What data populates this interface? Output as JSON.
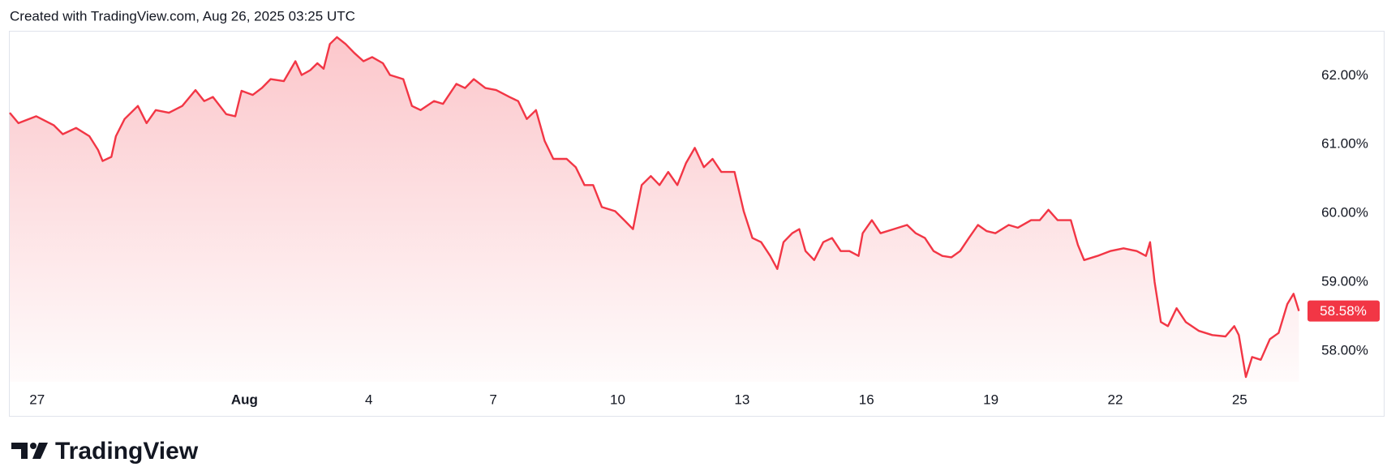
{
  "chart_data": {
    "type": "area",
    "title": "Created with TradingView.com, Aug 26, 2025 03:25 UTC",
    "brand": "TradingView",
    "color": "#f23645",
    "x": [
      -0.66,
      -0.45,
      -0.02,
      0.4,
      0.62,
      0.94,
      1.26,
      1.47,
      1.58,
      1.79,
      1.9,
      2.11,
      2.43,
      2.64,
      2.86,
      3.18,
      3.5,
      3.82,
      4.03,
      4.24,
      4.56,
      4.78,
      4.93,
      5.2,
      5.42,
      5.63,
      5.95,
      6.23,
      6.38,
      6.59,
      6.76,
      6.91,
      7.06,
      7.23,
      7.44,
      7.65,
      7.87,
      8.08,
      8.34,
      8.51,
      8.83,
      9.04,
      9.25,
      9.57,
      9.79,
      10.11,
      10.32,
      10.53,
      10.81,
      11.07,
      11.39,
      11.6,
      11.81,
      12.03,
      12.24,
      12.45,
      12.77,
      12.99,
      13.2,
      13.41,
      13.62,
      13.94,
      14.16,
      14.37,
      14.58,
      14.8,
      15.01,
      15.22,
      15.44,
      15.65,
      15.86,
      16.08,
      16.29,
      16.5,
      16.82,
      17.04,
      17.25,
      17.46,
      17.68,
      17.85,
      18.0,
      18.21,
      18.38,
      18.53,
      18.74,
      18.96,
      19.17,
      19.38,
      19.59,
      19.81,
      19.91,
      20.13,
      20.34,
      20.66,
      20.98,
      21.19,
      21.41,
      21.62,
      21.83,
      22.05,
      22.26,
      22.47,
      22.69,
      22.9,
      23.11,
      23.43,
      23.65,
      23.97,
      24.18,
      24.39,
      24.61,
      24.93,
      25.1,
      25.25,
      25.57,
      25.88,
      26.2,
      26.52,
      26.74,
      26.84,
      26.95,
      27.1,
      27.27,
      27.48,
      27.7,
      28.02,
      28.34,
      28.66,
      28.87,
      28.98,
      29.15,
      29.3,
      29.51,
      29.73,
      29.94,
      30.15,
      30.3,
      30.43
    ],
    "values": [
      61.46,
      61.31,
      61.41,
      61.28,
      61.15,
      61.24,
      61.12,
      60.92,
      60.76,
      60.82,
      61.12,
      61.37,
      61.56,
      61.31,
      61.5,
      61.46,
      61.56,
      61.79,
      61.63,
      61.69,
      61.44,
      61.41,
      61.78,
      61.72,
      61.82,
      61.95,
      61.92,
      62.21,
      62.01,
      62.08,
      62.18,
      62.1,
      62.46,
      62.56,
      62.46,
      62.33,
      62.21,
      62.27,
      62.18,
      62.01,
      61.95,
      61.56,
      61.5,
      61.63,
      61.59,
      61.88,
      61.82,
      61.95,
      61.82,
      61.79,
      61.69,
      61.63,
      61.37,
      61.5,
      61.05,
      60.79,
      60.79,
      60.67,
      60.41,
      60.41,
      60.09,
      60.03,
      59.9,
      59.77,
      60.41,
      60.54,
      60.41,
      60.6,
      60.41,
      60.73,
      60.95,
      60.67,
      60.79,
      60.6,
      60.6,
      60.03,
      59.64,
      59.58,
      59.38,
      59.19,
      59.58,
      59.71,
      59.77,
      59.45,
      59.32,
      59.58,
      59.64,
      59.45,
      59.45,
      59.38,
      59.71,
      59.9,
      59.71,
      59.77,
      59.83,
      59.71,
      59.64,
      59.45,
      59.38,
      59.36,
      59.45,
      59.64,
      59.83,
      59.74,
      59.71,
      59.83,
      59.79,
      59.9,
      59.9,
      60.05,
      59.9,
      59.9,
      59.54,
      59.32,
      59.38,
      59.45,
      59.49,
      59.45,
      59.38,
      59.58,
      59.0,
      58.42,
      58.36,
      58.62,
      58.42,
      58.29,
      58.23,
      58.21,
      58.36,
      58.23,
      57.62,
      57.91,
      57.87,
      58.17,
      58.26,
      58.68,
      58.83,
      58.58
    ],
    "last_value_label": "58.58%",
    "xlim": [
      -0.66,
      30.5
    ],
    "xticks": [
      {
        "value": 0,
        "label": "27"
      },
      {
        "value": 5,
        "label": "Aug"
      },
      {
        "value": 8,
        "label": "4"
      },
      {
        "value": 11,
        "label": "7"
      },
      {
        "value": 14,
        "label": "10"
      },
      {
        "value": 17,
        "label": "13"
      },
      {
        "value": 20,
        "label": "16"
      },
      {
        "value": 23,
        "label": "19"
      },
      {
        "value": 26,
        "label": "22"
      },
      {
        "value": 29,
        "label": "25"
      }
    ],
    "ylim": [
      57.55,
      62.64
    ],
    "yticks": [
      {
        "value": 58,
        "label": "58.00%"
      },
      {
        "value": 59,
        "label": "59.00%"
      },
      {
        "value": 60,
        "label": "60.00%"
      },
      {
        "value": 61,
        "label": "61.00%"
      },
      {
        "value": 62,
        "label": "62.00%"
      }
    ]
  }
}
